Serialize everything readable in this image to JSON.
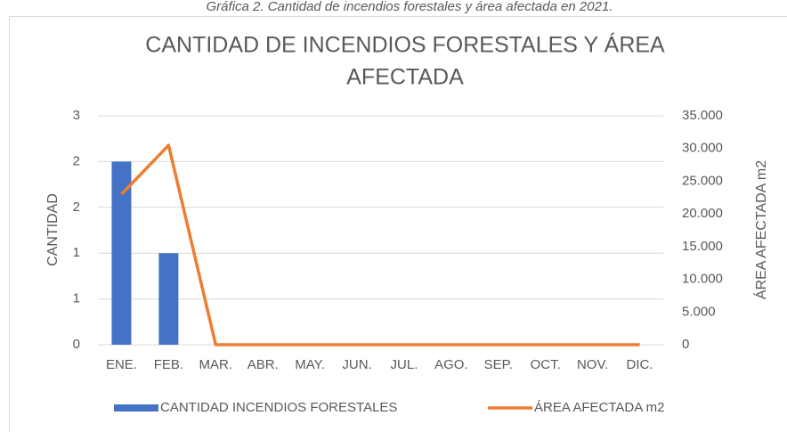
{
  "chart_data": {
    "type": "bar_line",
    "caption": "Gráfica 2. Cantidad de incendios forestales y área afectada en 2021.",
    "title_line1": "CANTIDAD DE INCENDIOS FORESTALES Y ÁREA",
    "title_line2": "AFECTADA",
    "y_label": "CANTIDAD",
    "y2_label": "ÁREA AFECTADA m2",
    "categories": [
      "ENE.",
      "FEB.",
      "MAR.",
      "ABR.",
      "MAY.",
      "JUN.",
      "JUL.",
      "AGO.",
      "SEP.",
      "OCT.",
      "NOV.",
      "DIC."
    ],
    "series": [
      {
        "name": "CANTIDAD INCENDIOS FORESTALES",
        "color": "#4472c4",
        "kind": "bar",
        "values": [
          2,
          1,
          0,
          0,
          0,
          0,
          0,
          0,
          0,
          0,
          0,
          0
        ]
      },
      {
        "name": "ÁREA AFECTADA m2",
        "color": "#ed7d31",
        "kind": "line",
        "axis": "y2",
        "values": [
          23000,
          30500,
          0,
          0,
          0,
          0,
          0,
          0,
          0,
          0,
          0,
          0
        ]
      }
    ],
    "ylim": [
      0,
      2.5
    ],
    "yticks": [
      0,
      {
        "value": 0.5,
        "label": "1"
      },
      1,
      {
        "value": 1.5,
        "label": "2"
      },
      2,
      {
        "value": 2.5,
        "label": "3"
      }
    ],
    "y2lim": [
      0,
      35000
    ],
    "y2ticks": [
      0,
      {
        "value": 5000,
        "label": "5.000"
      },
      {
        "value": 10000,
        "label": "10.000"
      },
      {
        "value": 15000,
        "label": "15.000"
      },
      {
        "value": 20000,
        "label": "20.000"
      },
      {
        "value": 25000,
        "label": "25.000"
      },
      {
        "value": 30000,
        "label": "30.000"
      },
      {
        "value": 35000,
        "label": "35.000"
      }
    ],
    "grid": true,
    "legend": "bottom"
  }
}
